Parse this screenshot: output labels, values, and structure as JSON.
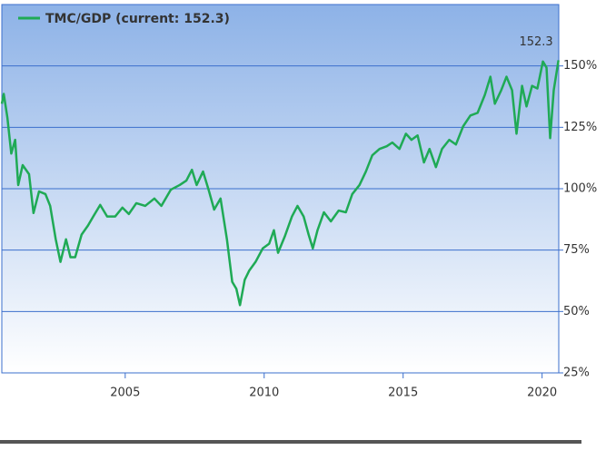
{
  "chart_data": {
    "type": "line",
    "annotation": "152.3",
    "legend": "top-left",
    "grid": true,
    "series": [
      {
        "name": "TMC/GDP (current: 152.3)",
        "color": "#1faa55",
        "x": [
          2000.56,
          2000.63,
          2000.76,
          2000.9,
          2001.04,
          2001.15,
          2001.31,
          2001.54,
          2001.7,
          2001.9,
          2002.13,
          2002.3,
          2002.5,
          2002.67,
          2002.87,
          2003.03,
          2003.2,
          2003.43,
          2003.66,
          2003.85,
          2004.1,
          2004.35,
          2004.64,
          2004.9,
          2005.13,
          2005.4,
          2005.72,
          2006.05,
          2006.3,
          2006.64,
          2006.96,
          2007.2,
          2007.4,
          2007.57,
          2007.8,
          2008.0,
          2008.2,
          2008.43,
          2008.66,
          2008.85,
          2009.0,
          2009.13,
          2009.3,
          2009.46,
          2009.69,
          2009.95,
          2010.18,
          2010.35,
          2010.5,
          2010.74,
          2011.0,
          2011.2,
          2011.42,
          2011.6,
          2011.75,
          2011.92,
          2012.15,
          2012.4,
          2012.68,
          2012.94,
          2013.17,
          2013.43,
          2013.66,
          2013.89,
          2014.15,
          2014.41,
          2014.61,
          2014.87,
          2015.1,
          2015.3,
          2015.52,
          2015.75,
          2015.95,
          2016.18,
          2016.4,
          2016.66,
          2016.9,
          2017.16,
          2017.42,
          2017.68,
          2017.94,
          2018.14,
          2018.3,
          2018.53,
          2018.72,
          2018.92,
          2019.08,
          2019.28,
          2019.44,
          2019.64,
          2019.83,
          2020.03,
          2020.16,
          2020.29,
          2020.42,
          2020.59
        ],
        "values": [
          134.6,
          138.6,
          129,
          114.3,
          119.9,
          101.5,
          109.6,
          105.9,
          90.1,
          98.9,
          97.8,
          93,
          79.4,
          70.2,
          79.4,
          72.1,
          72.1,
          81.3,
          85,
          88.7,
          93.4,
          88.7,
          88.7,
          92.3,
          89.7,
          94.1,
          93,
          96,
          93,
          99.6,
          101.5,
          103.3,
          107.7,
          101.5,
          107,
          99.6,
          91.5,
          96,
          79.4,
          62.1,
          59.2,
          52.6,
          62.9,
          66.6,
          70.2,
          75.7,
          77.6,
          83.1,
          73.9,
          80.5,
          88.7,
          93,
          88.7,
          81.3,
          75.7,
          83.1,
          90.4,
          86.7,
          91.1,
          90.4,
          97.8,
          101.5,
          107,
          113.6,
          116.2,
          117.3,
          118.8,
          116.2,
          122.4,
          119.9,
          121.7,
          110.7,
          116.2,
          108.8,
          116.2,
          119.9,
          118,
          125.4,
          129.8,
          130.9,
          138.2,
          145.6,
          134.6,
          140.1,
          145.6,
          140.1,
          122.4,
          141.9,
          133.5,
          141.9,
          140.8,
          151.8,
          149.3,
          120.6,
          140.1,
          152.3
        ]
      }
    ],
    "xlim": [
      2000.56,
      2020.6
    ],
    "xticks": [
      2005,
      2010,
      2015,
      2020
    ],
    "ylim": [
      25,
      175
    ],
    "yticks": [
      {
        "value": 25,
        "label": "25%"
      },
      {
        "value": 50,
        "label": "50%"
      },
      {
        "value": 75,
        "label": "75%"
      },
      {
        "value": 100,
        "label": "100%"
      },
      {
        "value": 125,
        "label": "125%"
      },
      {
        "value": 150,
        "label": "150%"
      }
    ]
  }
}
